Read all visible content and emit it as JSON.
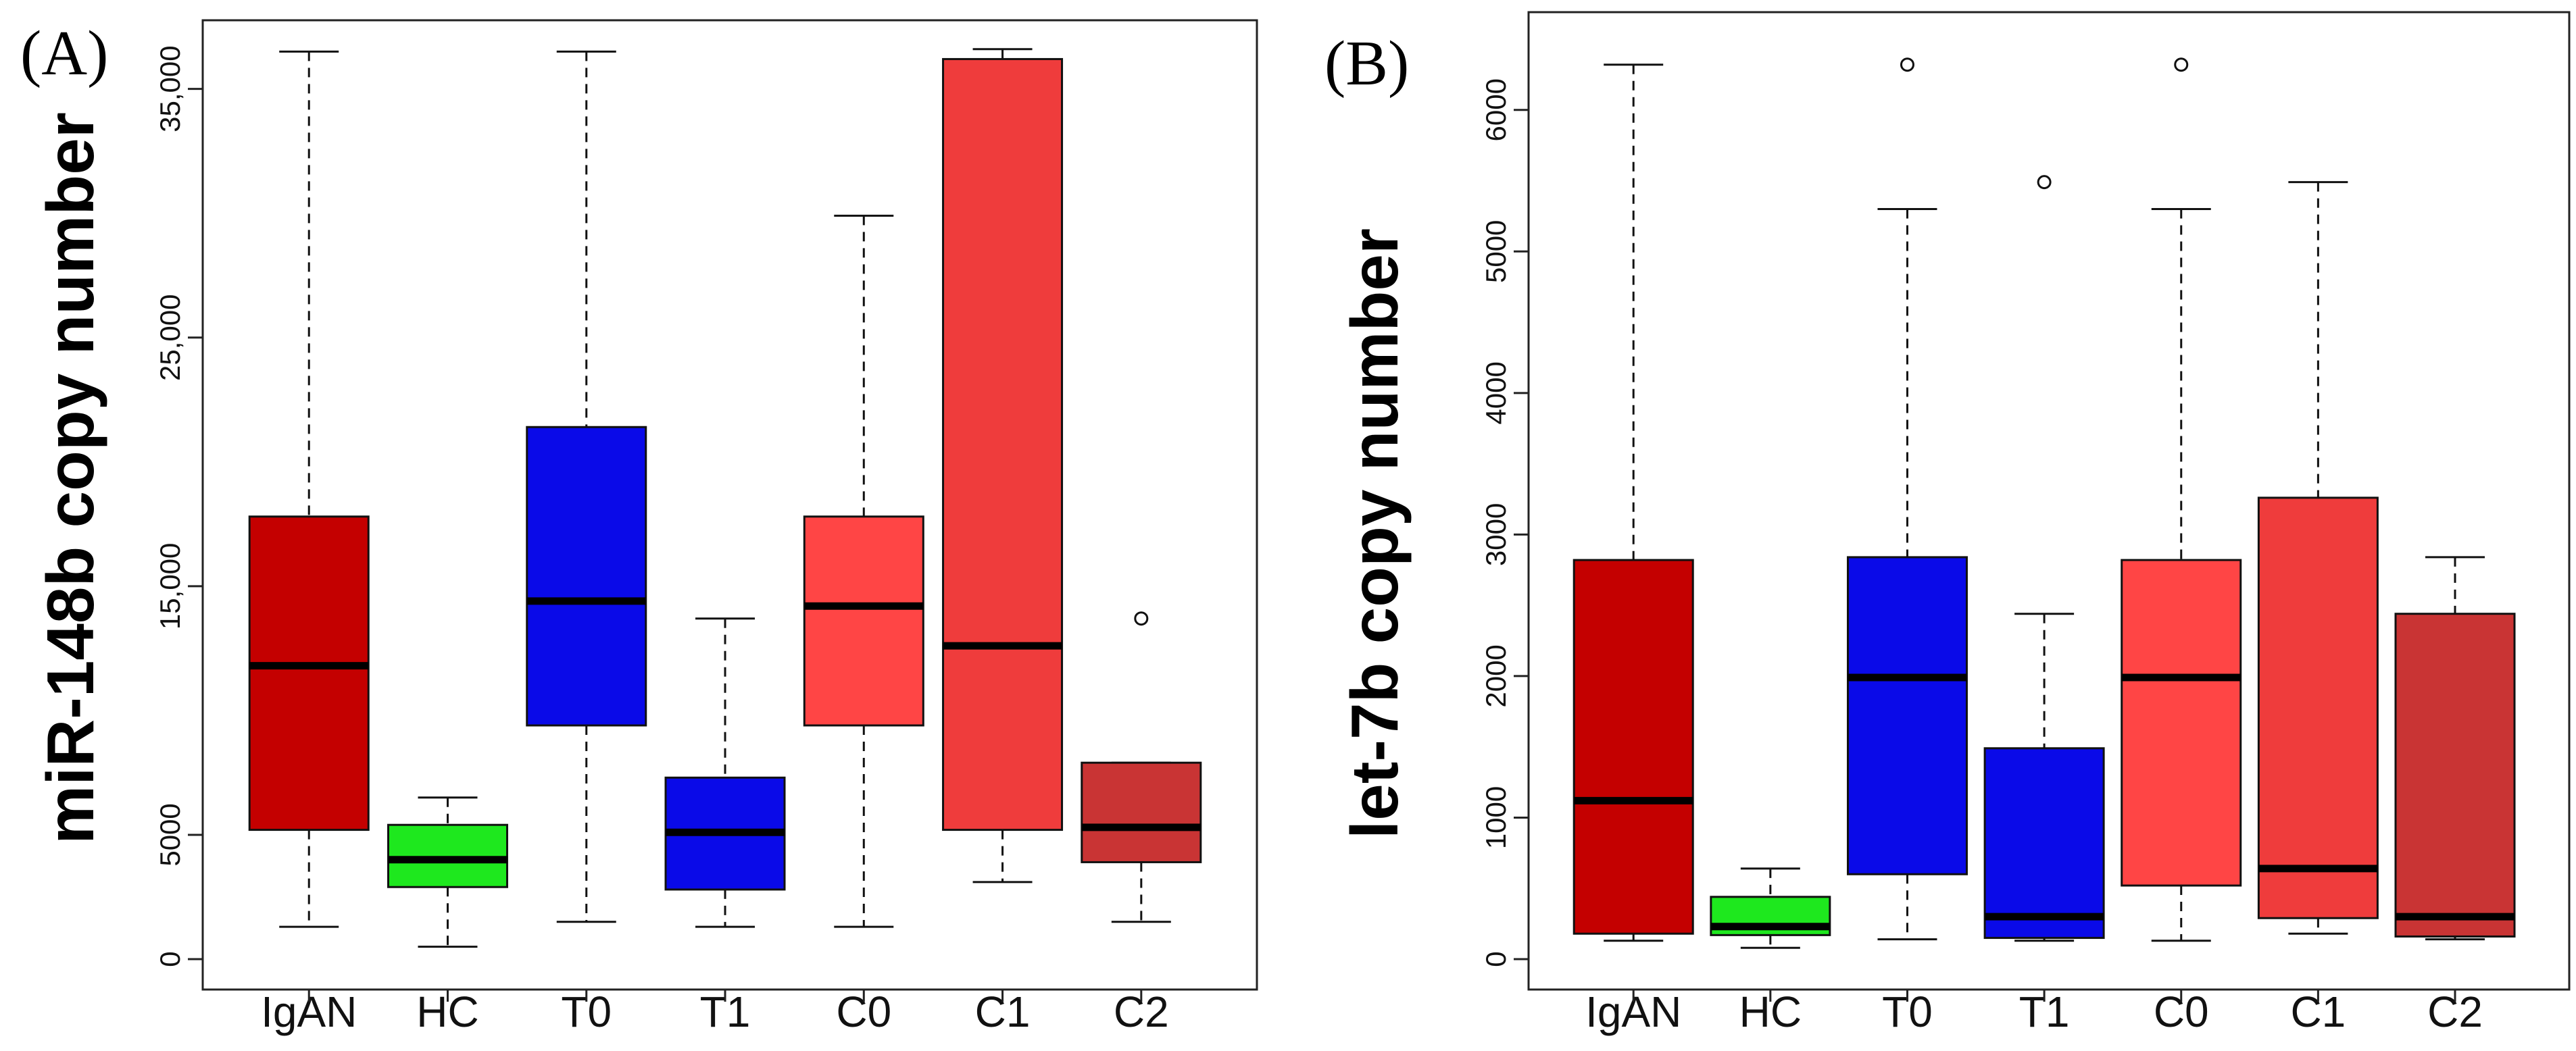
{
  "chart_data": [
    {
      "type": "boxplot",
      "panel_label": "(A)",
      "ylabel": "miR-148b copy number",
      "ylim": [
        0,
        37000
      ],
      "yticks": [
        0,
        5000,
        15000,
        25000,
        35000
      ],
      "ytick_labels": [
        "0",
        "5000",
        "15,000",
        "25,000",
        "35,000"
      ],
      "categories": [
        "IgAN",
        "HC",
        "T0",
        "T1",
        "C0",
        "C1",
        "C2"
      ],
      "colors": [
        "#c40000",
        "#1ee81e",
        "#0a0ae8",
        "#0a0ae8",
        "#ff4545",
        "#ef3c3c",
        "#c93434"
      ],
      "boxes": [
        {
          "whisker_low": 1300,
          "q1": 5200,
          "median": 11800,
          "q3": 17800,
          "whisker_high": 36500,
          "outliers": []
        },
        {
          "whisker_low": 500,
          "q1": 2900,
          "median": 4000,
          "q3": 5400,
          "whisker_high": 6500,
          "outliers": []
        },
        {
          "whisker_low": 1500,
          "q1": 9400,
          "median": 14400,
          "q3": 21400,
          "whisker_high": 36500,
          "outliers": []
        },
        {
          "whisker_low": 1300,
          "q1": 2800,
          "median": 5100,
          "q3": 7300,
          "whisker_high": 13700,
          "outliers": []
        },
        {
          "whisker_low": 1300,
          "q1": 9400,
          "median": 14200,
          "q3": 17800,
          "whisker_high": 29900,
          "outliers": []
        },
        {
          "whisker_low": 3100,
          "q1": 5200,
          "median": 12600,
          "q3": 36200,
          "whisker_high": 36600,
          "outliers": []
        },
        {
          "whisker_low": 1500,
          "q1": 3900,
          "median": 5300,
          "q3": 7900,
          "whisker_high": 7900,
          "outliers": [
            13700
          ]
        }
      ]
    },
    {
      "type": "boxplot",
      "panel_label": "(B)",
      "ylabel": "let-7b copy number",
      "ylim": [
        0,
        6500
      ],
      "yticks": [
        0,
        1000,
        2000,
        3000,
        4000,
        5000,
        6000
      ],
      "ytick_labels": [
        "0",
        "1000",
        "2000",
        "3000",
        "4000",
        "5000",
        "6000"
      ],
      "categories": [
        "IgAN",
        "HC",
        "T0",
        "T1",
        "C0",
        "C1",
        "C2"
      ],
      "colors": [
        "#c40000",
        "#1ee81e",
        "#0a0ae8",
        "#0a0ae8",
        "#ff4545",
        "#ef3c3c",
        "#c93434"
      ],
      "boxes": [
        {
          "whisker_low": 130,
          "q1": 180,
          "median": 1120,
          "q3": 2820,
          "whisker_high": 6320,
          "outliers": []
        },
        {
          "whisker_low": 80,
          "q1": 170,
          "median": 230,
          "q3": 440,
          "whisker_high": 640,
          "outliers": []
        },
        {
          "whisker_low": 140,
          "q1": 600,
          "median": 1990,
          "q3": 2840,
          "whisker_high": 5300,
          "outliers": [
            6320
          ]
        },
        {
          "whisker_low": 130,
          "q1": 150,
          "median": 300,
          "q3": 1490,
          "whisker_high": 2440,
          "outliers": [
            5490
          ]
        },
        {
          "whisker_low": 130,
          "q1": 520,
          "median": 1990,
          "q3": 2820,
          "whisker_high": 5300,
          "outliers": [
            6320
          ]
        },
        {
          "whisker_low": 180,
          "q1": 290,
          "median": 640,
          "q3": 3260,
          "whisker_high": 5490,
          "outliers": []
        },
        {
          "whisker_low": 140,
          "q1": 160,
          "median": 300,
          "q3": 2440,
          "whisker_high": 2840,
          "outliers": []
        }
      ]
    }
  ]
}
